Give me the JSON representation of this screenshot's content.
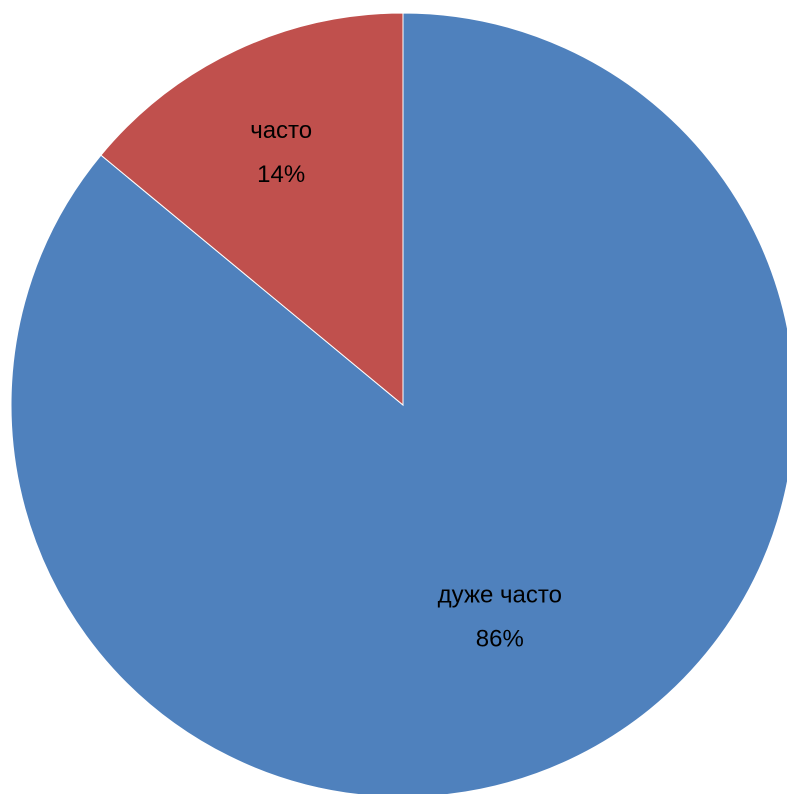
{
  "chart_data": {
    "type": "pie",
    "title": "",
    "categories": [
      "дуже часто",
      "часто"
    ],
    "values": [
      86,
      14
    ],
    "value_labels": [
      "86%",
      "14%"
    ],
    "colors": [
      "#4F81BD",
      "#C0504D"
    ],
    "start_angle_deg": 0,
    "direction": "clockwise",
    "legend": "none",
    "data_labels": "inside"
  }
}
